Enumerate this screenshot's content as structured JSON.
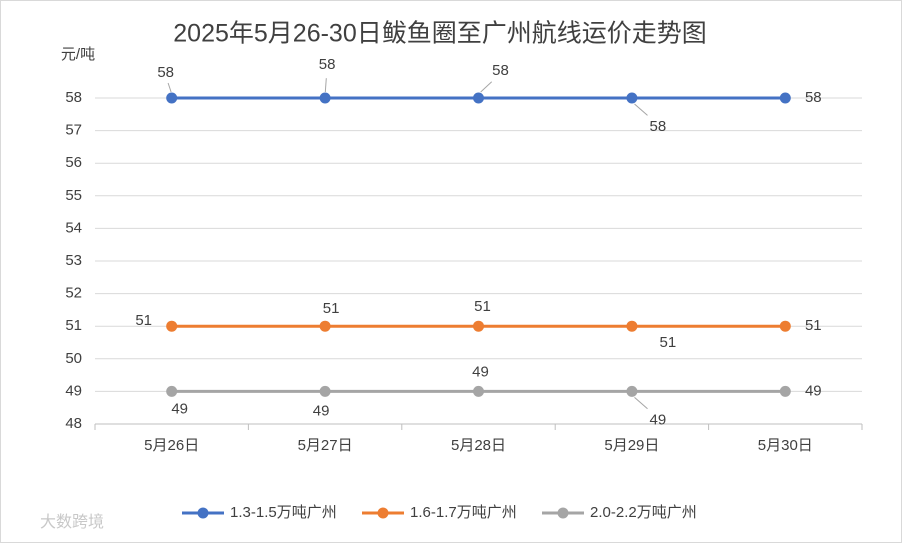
{
  "chart_data": {
    "type": "line",
    "title": "2025年5月26-30日鲅鱼圈至广州航线运价走势图",
    "y_label": "元/吨",
    "categories": [
      "5月26日",
      "5月27日",
      "5月28日",
      "5月29日",
      "5月30日"
    ],
    "series": [
      {
        "name": "1.3-1.5万吨广州",
        "color": "#4472c4",
        "values": [
          58,
          58,
          58,
          58,
          58
        ]
      },
      {
        "name": "1.6-1.7万吨广州",
        "color": "#ed7d31",
        "values": [
          51,
          51,
          51,
          51,
          51
        ]
      },
      {
        "name": "2.0-2.2万吨广州",
        "color": "#a5a5a5",
        "values": [
          49,
          49,
          49,
          49,
          49
        ]
      }
    ],
    "ylim": [
      48,
      58
    ],
    "yticks": [
      48,
      49,
      50,
      51,
      52,
      53,
      54,
      55,
      56,
      57,
      58
    ],
    "grid": true,
    "legend": "bottom",
    "watermark": "大数跨境"
  }
}
